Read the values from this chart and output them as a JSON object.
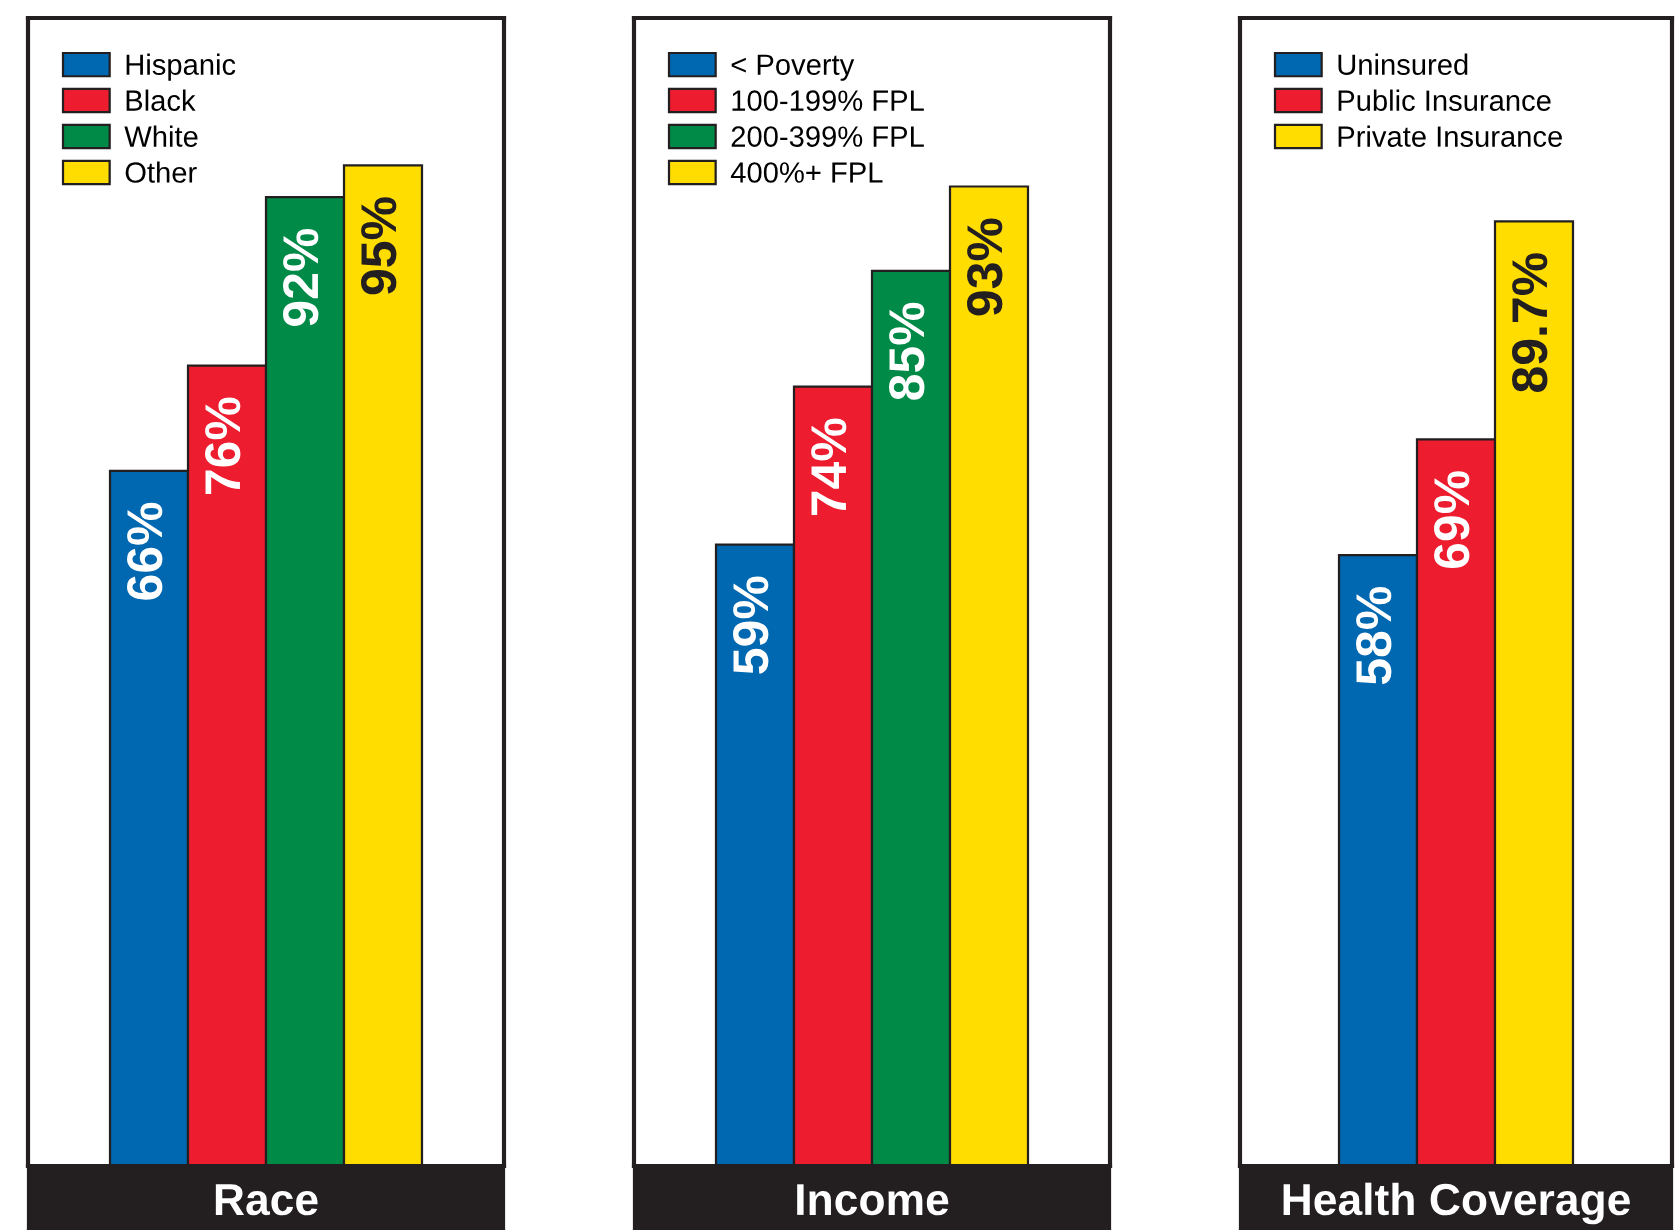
{
  "chart_data": [
    {
      "type": "bar",
      "categories": [
        "Race"
      ],
      "series": [
        {
          "name": "Hispanic",
          "color": "#0067b1",
          "values": [
            66
          ],
          "value_labels": [
            "66%"
          ]
        },
        {
          "name": "Black",
          "color": "#ed1c2e",
          "values": [
            76
          ],
          "value_labels": [
            "76%"
          ]
        },
        {
          "name": "White",
          "color": "#008a47",
          "values": [
            92
          ],
          "value_labels": [
            "92%"
          ]
        },
        {
          "name": "Other",
          "color": "#ffdd00",
          "values": [
            95
          ],
          "value_labels": [
            "95%"
          ]
        }
      ],
      "ylim": [
        0,
        109
      ],
      "tick_labels": "x",
      "legend": "top left"
    },
    {
      "type": "bar",
      "categories": [
        "Income"
      ],
      "series": [
        {
          "name": "< Poverty",
          "color": "#0067b1",
          "values": [
            59
          ],
          "value_labels": [
            "59%"
          ]
        },
        {
          "name": "100-199% FPL",
          "color": "#ed1c2e",
          "values": [
            74
          ],
          "value_labels": [
            "74%"
          ]
        },
        {
          "name": "200-399% FPL",
          "color": "#008a47",
          "values": [
            85
          ],
          "value_labels": [
            "85%"
          ]
        },
        {
          "name": "400%+ FPL",
          "color": "#ffdd00",
          "values": [
            93
          ],
          "value_labels": [
            "93%"
          ]
        }
      ],
      "ylim": [
        0,
        109
      ],
      "tick_labels": "x",
      "legend": "top left"
    },
    {
      "type": "bar",
      "categories": [
        "Health Coverage"
      ],
      "series": [
        {
          "name": "Uninsured",
          "color": "#0067b1",
          "values": [
            58
          ],
          "value_labels": [
            "58%"
          ]
        },
        {
          "name": "Public Insurance",
          "color": "#ed1c2e",
          "values": [
            69
          ],
          "value_labels": [
            "69%"
          ]
        },
        {
          "name": "Private Insurance",
          "color": "#ffdd00",
          "values": [
            89.7
          ],
          "value_labels": [
            "89.7%"
          ]
        }
      ],
      "ylim": [
        0,
        109
      ],
      "tick_labels": "x",
      "legend": "top left"
    }
  ]
}
